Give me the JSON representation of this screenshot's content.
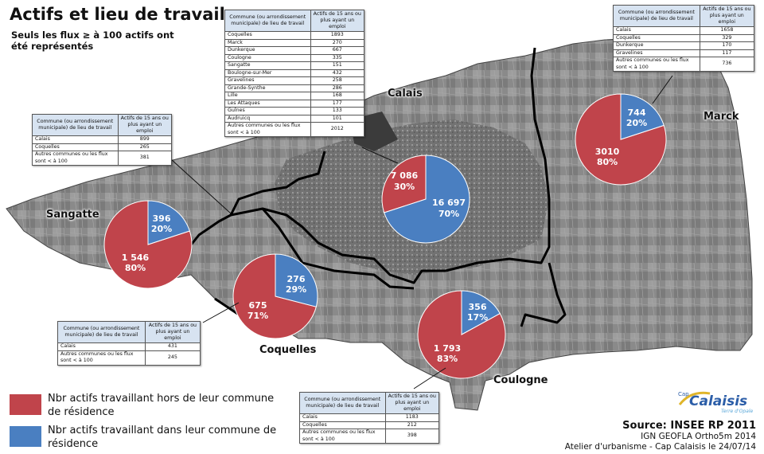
{
  "title": "Actifs et lieu de travail",
  "subtitle": "Seuls les flux ≥ à 100 actifs ont été représentés",
  "colors": {
    "hors_commune": "#c0444b",
    "dans_commune": "#4a7fc1",
    "boundary": "#000000",
    "table_header": "#d7e3f1"
  },
  "places": {
    "calais": "Calais",
    "marck": "Marck",
    "sangatte": "Sangatte",
    "coquelles": "Coquelles",
    "coulogne": "Coulogne"
  },
  "table_headers": {
    "col1": "Commune (ou arrondissement municipale) de lieu de travail",
    "col2": "Actifs de 15 ans ou plus ayant un emploi"
  },
  "tables": {
    "calais": [
      [
        "Coquelles",
        "1893"
      ],
      [
        "Marck",
        "270"
      ],
      [
        "Dunkerque",
        "667"
      ],
      [
        "Coulogne",
        "335"
      ],
      [
        "Sangatte",
        "151"
      ],
      [
        "Boulogne-sur-Mer",
        "432"
      ],
      [
        "Gravelines",
        "258"
      ],
      [
        "Grande-Synthe",
        "286"
      ],
      [
        "Lille",
        "168"
      ],
      [
        "Les Attaques",
        "177"
      ],
      [
        "Guînes",
        "133"
      ],
      [
        "Audruicq",
        "101"
      ],
      [
        "Autres communes ou les flux sont < à 100",
        "2012"
      ]
    ],
    "marck": [
      [
        "Calais",
        "1658"
      ],
      [
        "Coquelles",
        "329"
      ],
      [
        "Dunkerque",
        "170"
      ],
      [
        "Gravelines",
        "117"
      ],
      [
        "Autres communes ou les flux sont < à 100",
        "736"
      ]
    ],
    "sangatte": [
      [
        "Calais",
        "899"
      ],
      [
        "Coquelles",
        "265"
      ],
      [
        "Autres communes ou les flux sont < à 100",
        "381"
      ]
    ],
    "coquelles": [
      [
        "Calais",
        "431"
      ],
      [
        "Autres communes ou les flux sont < à 100",
        "245"
      ]
    ],
    "coulogne": [
      [
        "Calais",
        "1183"
      ],
      [
        "Coquelles",
        "212"
      ],
      [
        "Autres communes ou les flux sont < à 100",
        "398"
      ]
    ]
  },
  "pies": {
    "calais": {
      "hors": {
        "value": "7 086",
        "pct": "30%"
      },
      "dans": {
        "value": "16 697",
        "pct": "70%"
      },
      "hors_fraction": 0.3
    },
    "marck": {
      "hors": {
        "value": "3010",
        "pct": "80%"
      },
      "dans": {
        "value": "744",
        "pct": "20%"
      },
      "hors_fraction": 0.8
    },
    "sangatte": {
      "hors": {
        "value": "1 546",
        "pct": "80%"
      },
      "dans": {
        "value": "396",
        "pct": "20%"
      },
      "hors_fraction": 0.8
    },
    "coquelles": {
      "hors": {
        "value": "675",
        "pct": "71%"
      },
      "dans": {
        "value": "276",
        "pct": "29%"
      },
      "hors_fraction": 0.71
    },
    "coulogne": {
      "hors": {
        "value": "1 793",
        "pct": "83%"
      },
      "dans": {
        "value": "356",
        "pct": "17%"
      },
      "hors_fraction": 0.83
    }
  },
  "legend": {
    "hors": "Nbr actifs travaillant hors de leur commune de résidence",
    "dans": "Nbr actifs travaillant dans leur commune de résidence"
  },
  "source": {
    "line1": "Source: INSEE RP 2011",
    "line2": "IGN GEOFLA Ortho5m 2014",
    "line3": "Atelier d'urbanisme - Cap Calaisis le 24/07/14"
  },
  "logo": {
    "main": "Calaisis",
    "prefix": "Cap",
    "tagline": "Terre d'Opale"
  }
}
